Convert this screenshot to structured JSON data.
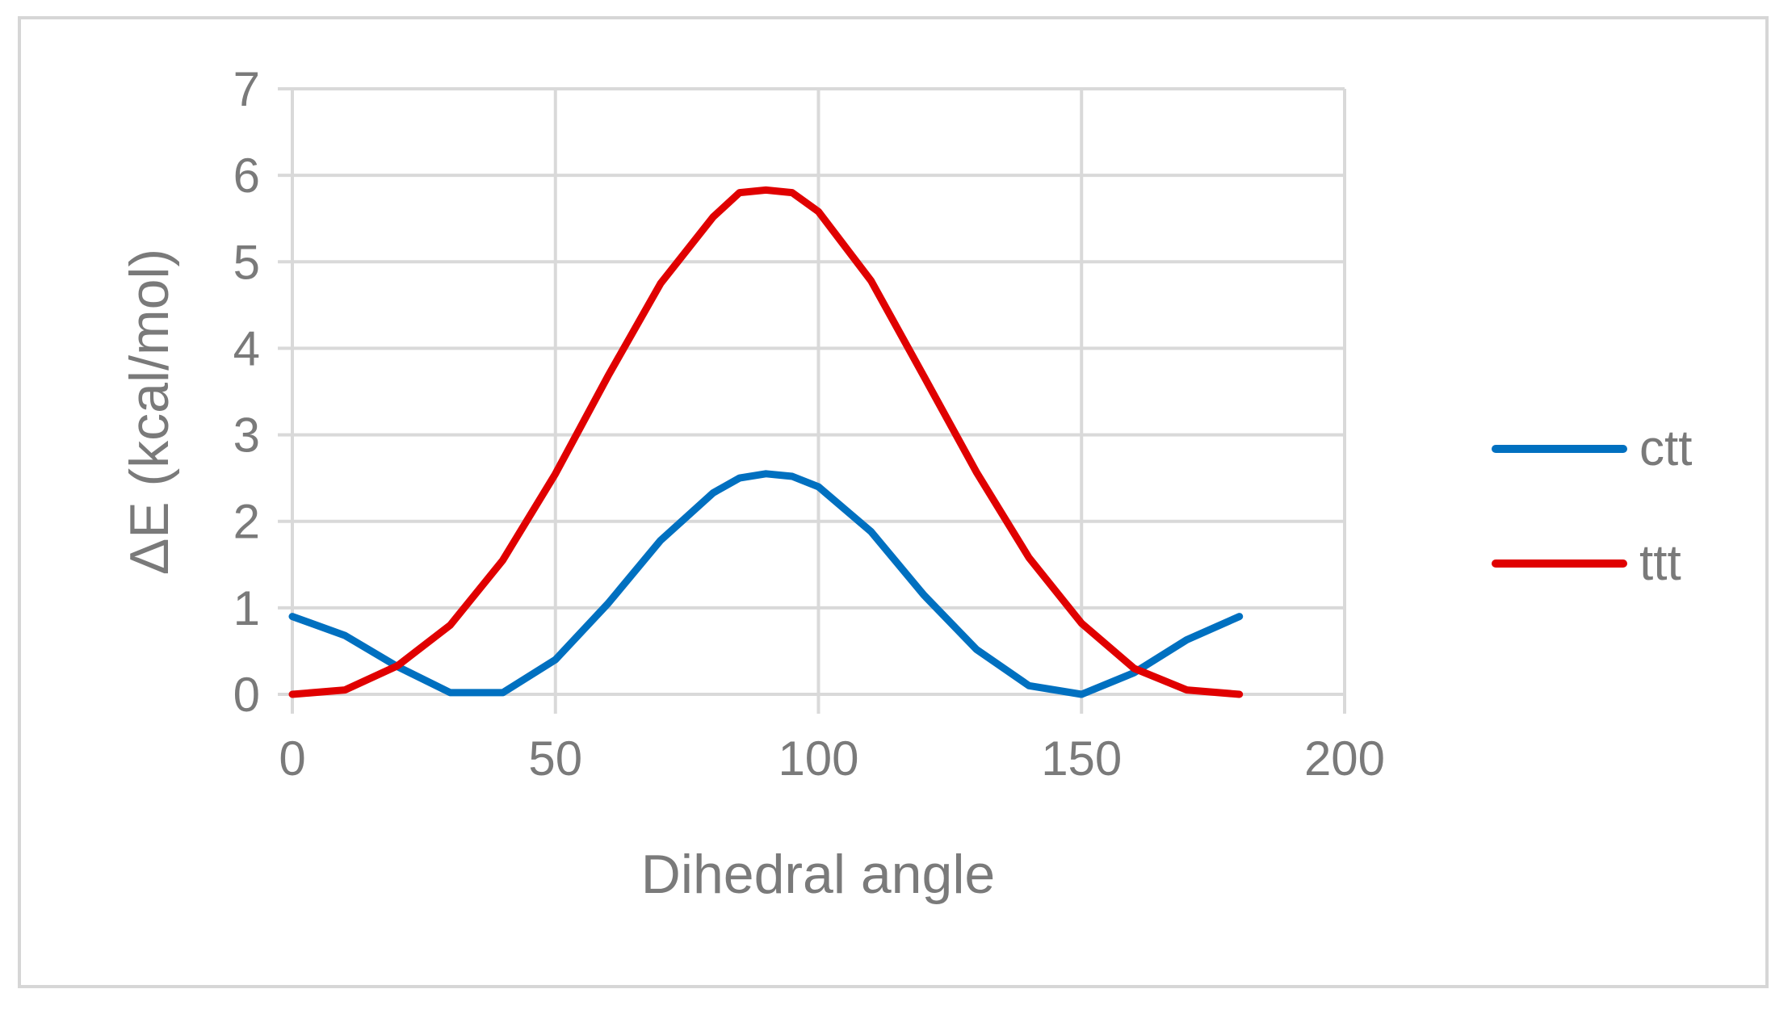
{
  "chart_data": {
    "type": "line",
    "title": "",
    "xlabel": "Dihedral angle",
    "ylabel": "ΔE (kcal/mol)",
    "xlim": [
      0,
      200
    ],
    "ylim": [
      0,
      7
    ],
    "xticks": [
      0,
      50,
      100,
      150,
      200
    ],
    "yticks": [
      0,
      1,
      2,
      3,
      4,
      5,
      6,
      7
    ],
    "grid": true,
    "legend_position": "right",
    "x": [
      0,
      10,
      20,
      30,
      40,
      50,
      60,
      70,
      80,
      85,
      90,
      95,
      100,
      110,
      120,
      130,
      140,
      150,
      160,
      170,
      180
    ],
    "series": [
      {
        "name": "ctt",
        "color": "#0070c0",
        "values": [
          0.9,
          0.68,
          0.32,
          0.02,
          0.02,
          0.4,
          1.05,
          1.78,
          2.33,
          2.5,
          2.55,
          2.52,
          2.4,
          1.88,
          1.15,
          0.52,
          0.1,
          0.0,
          0.25,
          0.63,
          0.9
        ]
      },
      {
        "name": "ttt",
        "color": "#e00000",
        "values": [
          0.0,
          0.05,
          0.33,
          0.8,
          1.55,
          2.55,
          3.68,
          4.75,
          5.52,
          5.8,
          5.83,
          5.8,
          5.58,
          4.78,
          3.68,
          2.57,
          1.58,
          0.82,
          0.3,
          0.05,
          0.0
        ]
      }
    ]
  }
}
